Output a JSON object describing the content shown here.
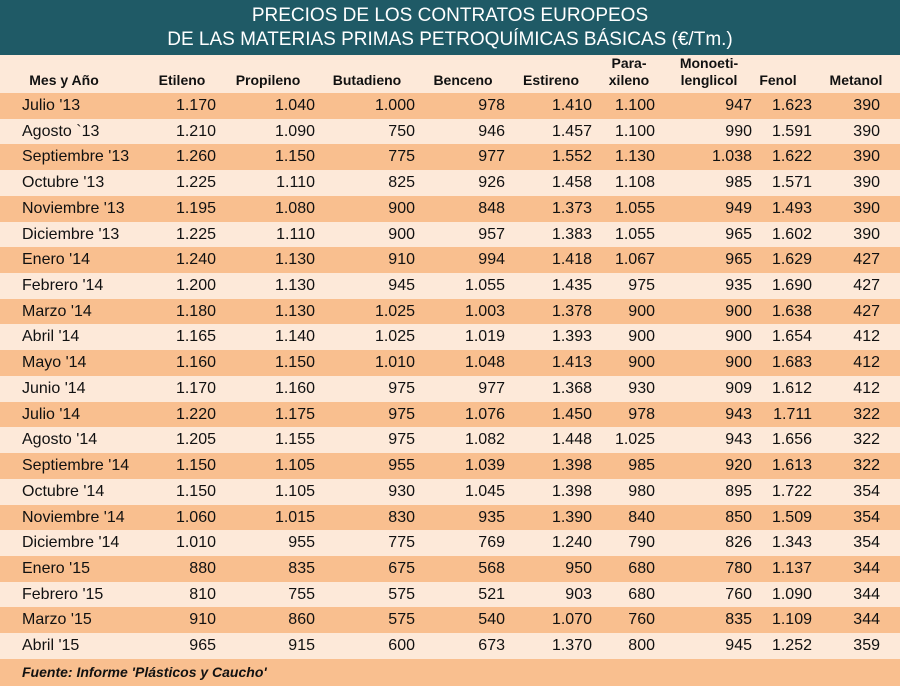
{
  "title": {
    "line1": "PRECIOS DE LOS CONTRATOS EUROPEOS",
    "line2": "DE LAS MATERIAS PRIMAS PETROQUÍMICAS BÁSICAS (€/Tm.)"
  },
  "columns": [
    "Mes y Año",
    "Etileno",
    "Propileno",
    "Butadieno",
    "Benceno",
    "Estireno",
    "Para-\nxileno",
    "Monoeti-\nlenglicol",
    "Fenol",
    "Metanol"
  ],
  "rows": [
    [
      "Julio '13",
      "1.170",
      "1.040",
      "1.000",
      "978",
      "1.410",
      "1.100",
      "947",
      "1.623",
      "390"
    ],
    [
      "Agosto `13",
      "1.210",
      "1.090",
      "750",
      "946",
      "1.457",
      "1.100",
      "990",
      "1.591",
      "390"
    ],
    [
      "Septiembre '13",
      "1.260",
      "1.150",
      "775",
      "977",
      "1.552",
      "1.130",
      "1.038",
      "1.622",
      "390"
    ],
    [
      "Octubre '13",
      "1.225",
      "1.110",
      "825",
      "926",
      "1.458",
      "1.108",
      "985",
      "1.571",
      "390"
    ],
    [
      "Noviembre '13",
      "1.195",
      "1.080",
      "900",
      "848",
      "1.373",
      "1.055",
      "949",
      "1.493",
      "390"
    ],
    [
      "Diciembre '13",
      "1.225",
      "1.110",
      "900",
      "957",
      "1.383",
      "1.055",
      "965",
      "1.602",
      "390"
    ],
    [
      "Enero '14",
      "1.240",
      "1.130",
      "910",
      "994",
      "1.418",
      "1.067",
      "965",
      "1.629",
      "427"
    ],
    [
      "Febrero '14",
      "1.200",
      "1.130",
      "945",
      "1.055",
      "1.435",
      "975",
      "935",
      "1.690",
      "427"
    ],
    [
      "Marzo '14",
      "1.180",
      "1.130",
      "1.025",
      "1.003",
      "1.378",
      "900",
      "900",
      "1.638",
      "427"
    ],
    [
      "Abril '14",
      "1.165",
      "1.140",
      "1.025",
      "1.019",
      "1.393",
      "900",
      "900",
      "1.654",
      "412"
    ],
    [
      "Mayo '14",
      "1.160",
      "1.150",
      "1.010",
      "1.048",
      "1.413",
      "900",
      "900",
      "1.683",
      "412"
    ],
    [
      "Junio '14",
      "1.170",
      "1.160",
      "975",
      "977",
      "1.368",
      "930",
      "909",
      "1.612",
      "412"
    ],
    [
      "Julio '14",
      "1.220",
      "1.175",
      "975",
      "1.076",
      "1.450",
      "978",
      "943",
      "1.711",
      "322"
    ],
    [
      "Agosto '14",
      "1.205",
      "1.155",
      "975",
      "1.082",
      "1.448",
      "1.025",
      "943",
      "1.656",
      "322"
    ],
    [
      "Septiembre '14",
      "1.150",
      "1.105",
      "955",
      "1.039",
      "1.398",
      "985",
      "920",
      "1.613",
      "322"
    ],
    [
      "Octubre '14",
      "1.150",
      "1.105",
      "930",
      "1.045",
      "1.398",
      "980",
      "895",
      "1.722",
      "354"
    ],
    [
      "Noviembre '14",
      "1.060",
      "1.015",
      "830",
      "935",
      "1.390",
      "840",
      "850",
      "1.509",
      "354"
    ],
    [
      "Diciembre '14",
      "1.010",
      "955",
      "775",
      "769",
      "1.240",
      "790",
      "826",
      "1.343",
      "354"
    ],
    [
      "Enero '15",
      "880",
      "835",
      "675",
      "568",
      "950",
      "680",
      "780",
      "1.137",
      "344"
    ],
    [
      "Febrero '15",
      "810",
      "755",
      "575",
      "521",
      "903",
      "680",
      "760",
      "1.090",
      "344"
    ],
    [
      "Marzo '15",
      "910",
      "860",
      "575",
      "540",
      "1.070",
      "760",
      "835",
      "1.109",
      "344"
    ],
    [
      "Abril '15",
      "965",
      "915",
      "600",
      "673",
      "1.370",
      "800",
      "945",
      "1.252",
      "359"
    ]
  ],
  "footer": "Fuente: Informe 'Plásticos y Caucho'",
  "colors": {
    "title_bg": "#1f5a66",
    "row_dark": "#f9bf8f",
    "row_light": "#fde9d9"
  }
}
